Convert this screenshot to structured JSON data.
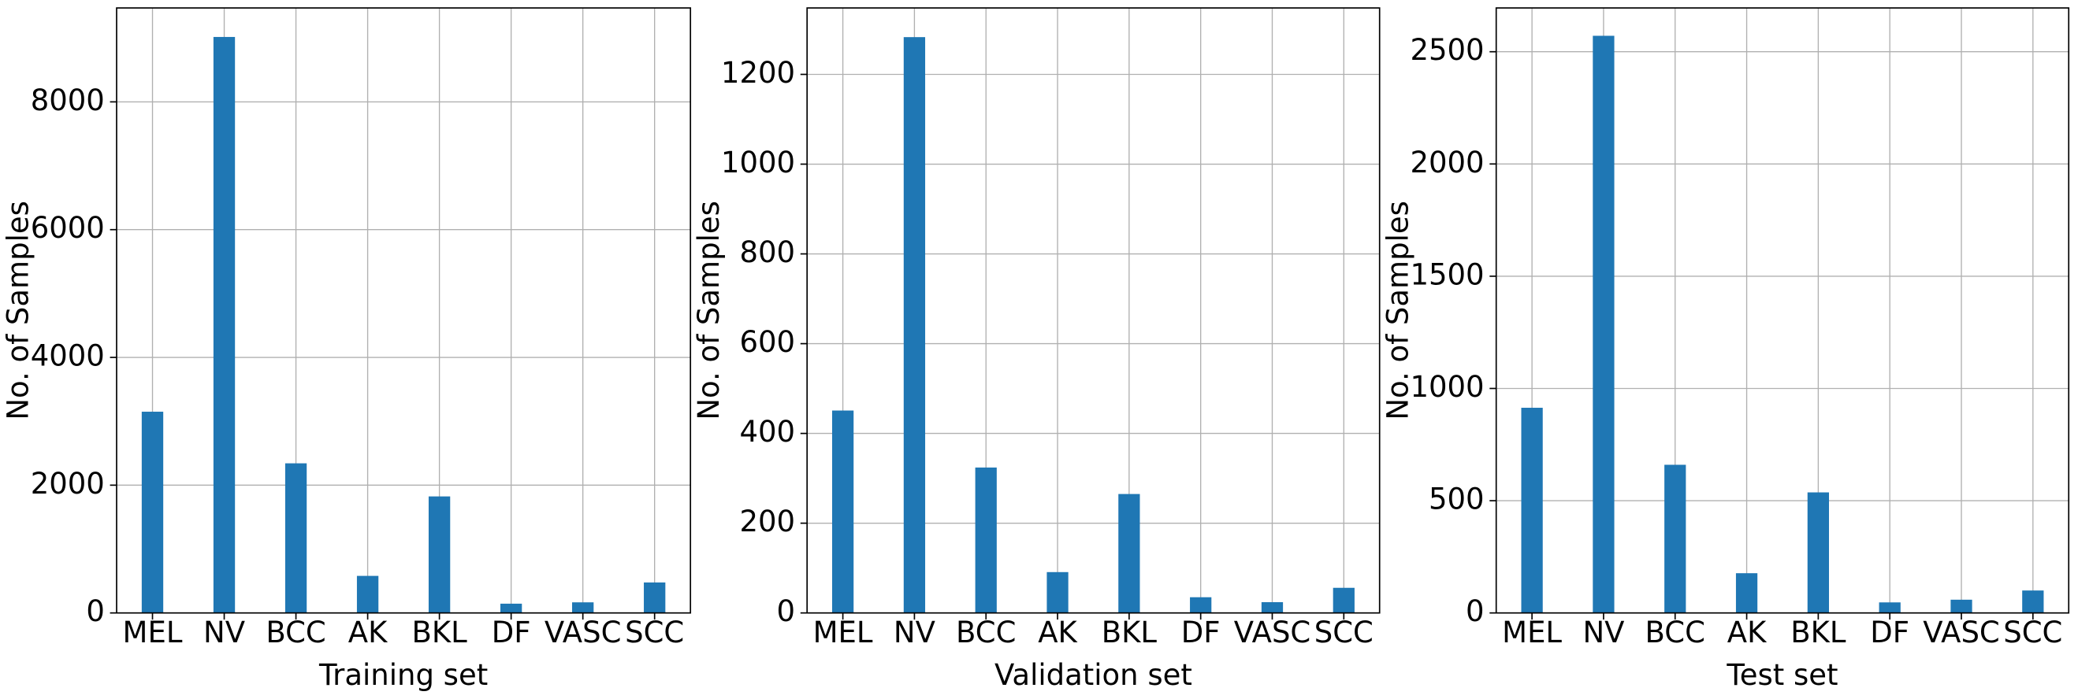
{
  "chart_data": [
    {
      "type": "bar",
      "xlabel": "Training set",
      "ylabel": "No. of Samples",
      "categories": [
        "MEL",
        "NV",
        "BCC",
        "AK",
        "BKL",
        "DF",
        "VASC",
        "SCC"
      ],
      "values": [
        3150,
        9016,
        2342,
        580,
        1824,
        145,
        166,
        477
      ],
      "color": "#1f77b4",
      "ylim": [
        0,
        9470
      ],
      "yticks": [
        0,
        2000,
        4000,
        6000,
        8000
      ],
      "grid": true
    },
    {
      "type": "bar",
      "xlabel": "Validation set",
      "ylabel": "No. of Samples",
      "categories": [
        "MEL",
        "NV",
        "BCC",
        "AK",
        "BKL",
        "DF",
        "VASC",
        "SCC"
      ],
      "values": [
        451,
        1283,
        324,
        91,
        265,
        35,
        24,
        56
      ],
      "color": "#1f77b4",
      "ylim": [
        0,
        1348
      ],
      "yticks": [
        0,
        200,
        400,
        600,
        800,
        1000,
        1200
      ],
      "grid": true
    },
    {
      "type": "bar",
      "xlabel": "Test set",
      "ylabel": "No. of Samples",
      "categories": [
        "MEL",
        "NV",
        "BCC",
        "AK",
        "BKL",
        "DF",
        "VASC",
        "SCC"
      ],
      "values": [
        914,
        2571,
        660,
        177,
        537,
        47,
        59,
        100
      ],
      "color": "#1f77b4",
      "ylim": [
        0,
        2695
      ],
      "yticks": [
        0,
        500,
        1000,
        1500,
        2000,
        2500
      ],
      "grid": true
    }
  ]
}
